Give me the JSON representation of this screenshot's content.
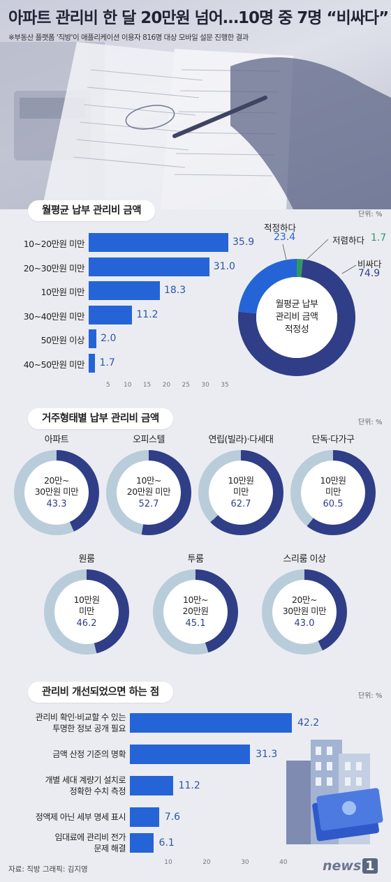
{
  "headline": "아파트 관리비 한 달 20만원 넘어…10명 중 7명 “비싸다”",
  "subnote": "※부동산 플랫폼 '직방'이 애플리케이션 이용자 816명 대상 모바일 설문 진행한 결과",
  "colors": {
    "bar": "#2464d6",
    "dark": "#2f3e86",
    "light": "#b9ccd9",
    "accent": "#2464d6",
    "green": "#2e9a62"
  },
  "chart_data": [
    {
      "type": "bar",
      "title": "월평균 납부 관리비 금액",
      "unit": "단위: %",
      "categories": [
        "10~20만원 미만",
        "20~30만원 미만",
        "10만원 미만",
        "30~40만원 미만",
        "50만원 이상",
        "40~50만원 미만"
      ],
      "values": [
        35.9,
        31.0,
        18.3,
        11.2,
        2.0,
        1.7
      ],
      "value_labels": [
        "35.9",
        "31.0",
        "18.3",
        "11.2",
        "2.0",
        "1.7"
      ],
      "xticks": [
        "5",
        "10",
        "15",
        "20",
        "25",
        "30",
        "35"
      ],
      "xlim": [
        0,
        35.9
      ]
    },
    {
      "type": "pie",
      "title": "월평균 납부 관리비 금액 적정성",
      "center_label": [
        "월평균 납부",
        "관리비 금액",
        "적정성"
      ],
      "slices": [
        {
          "label": "비싸다",
          "value": 74.9,
          "value_label": "74.9"
        },
        {
          "label": "적정하다",
          "value": 23.4,
          "value_label": "23.4"
        },
        {
          "label": "저렴하다",
          "value": 1.7,
          "value_label": "1.7"
        }
      ]
    },
    {
      "type": "pie",
      "title": "거주형태별 납부 관리비 금액",
      "unit": "단위: %",
      "items": [
        {
          "name": "아파트",
          "center": [
            "20만~",
            "30만원 미만"
          ],
          "value": 43.3,
          "value_label": "43.3"
        },
        {
          "name": "오피스텔",
          "center": [
            "10만~",
            "20만원 미만"
          ],
          "value": 52.7,
          "value_label": "52.7"
        },
        {
          "name": "연립(빌라)·다세대",
          "center": [
            "10만원",
            "미만"
          ],
          "value": 62.7,
          "value_label": "62.7"
        },
        {
          "name": "단독·다가구",
          "center": [
            "10만원",
            "미만"
          ],
          "value": 60.5,
          "value_label": "60.5"
        },
        {
          "name": "원룸",
          "center": [
            "10만원",
            "미만"
          ],
          "value": 46.2,
          "value_label": "46.2"
        },
        {
          "name": "투룸",
          "center": [
            "10만~",
            "20만원"
          ],
          "value": 45.1,
          "value_label": "45.1"
        },
        {
          "name": "스리룸 이상",
          "center": [
            "20만~",
            "30만원 미만"
          ],
          "value": 43.0,
          "value_label": "43.0"
        }
      ]
    },
    {
      "type": "bar",
      "title": "관리비 개선되었으면 하는 점",
      "unit": "단위: %",
      "categories": [
        [
          "관리비 확인·비교할 수 있는",
          "투명한 정보 공개 필요"
        ],
        [
          "금액 산정 기준의 명확"
        ],
        [
          "개별 세대 계량기 설치로",
          "정확한 수치 측정"
        ],
        [
          "정액제 아닌 세부 명세 표시"
        ],
        [
          "임대료에 관리비 전가",
          "문제 해결"
        ]
      ],
      "values": [
        42.2,
        31.3,
        11.2,
        7.6,
        6.1
      ],
      "value_labels": [
        "42.2",
        "31.3",
        "11.2",
        "7.6",
        "6.1"
      ],
      "xticks": [
        "10",
        "20",
        "30",
        "40"
      ],
      "xlim": [
        0,
        43
      ]
    }
  ],
  "footer": "자료: 직방   그래픽: 김지영",
  "logo": {
    "text": "news",
    "badge": "1"
  }
}
